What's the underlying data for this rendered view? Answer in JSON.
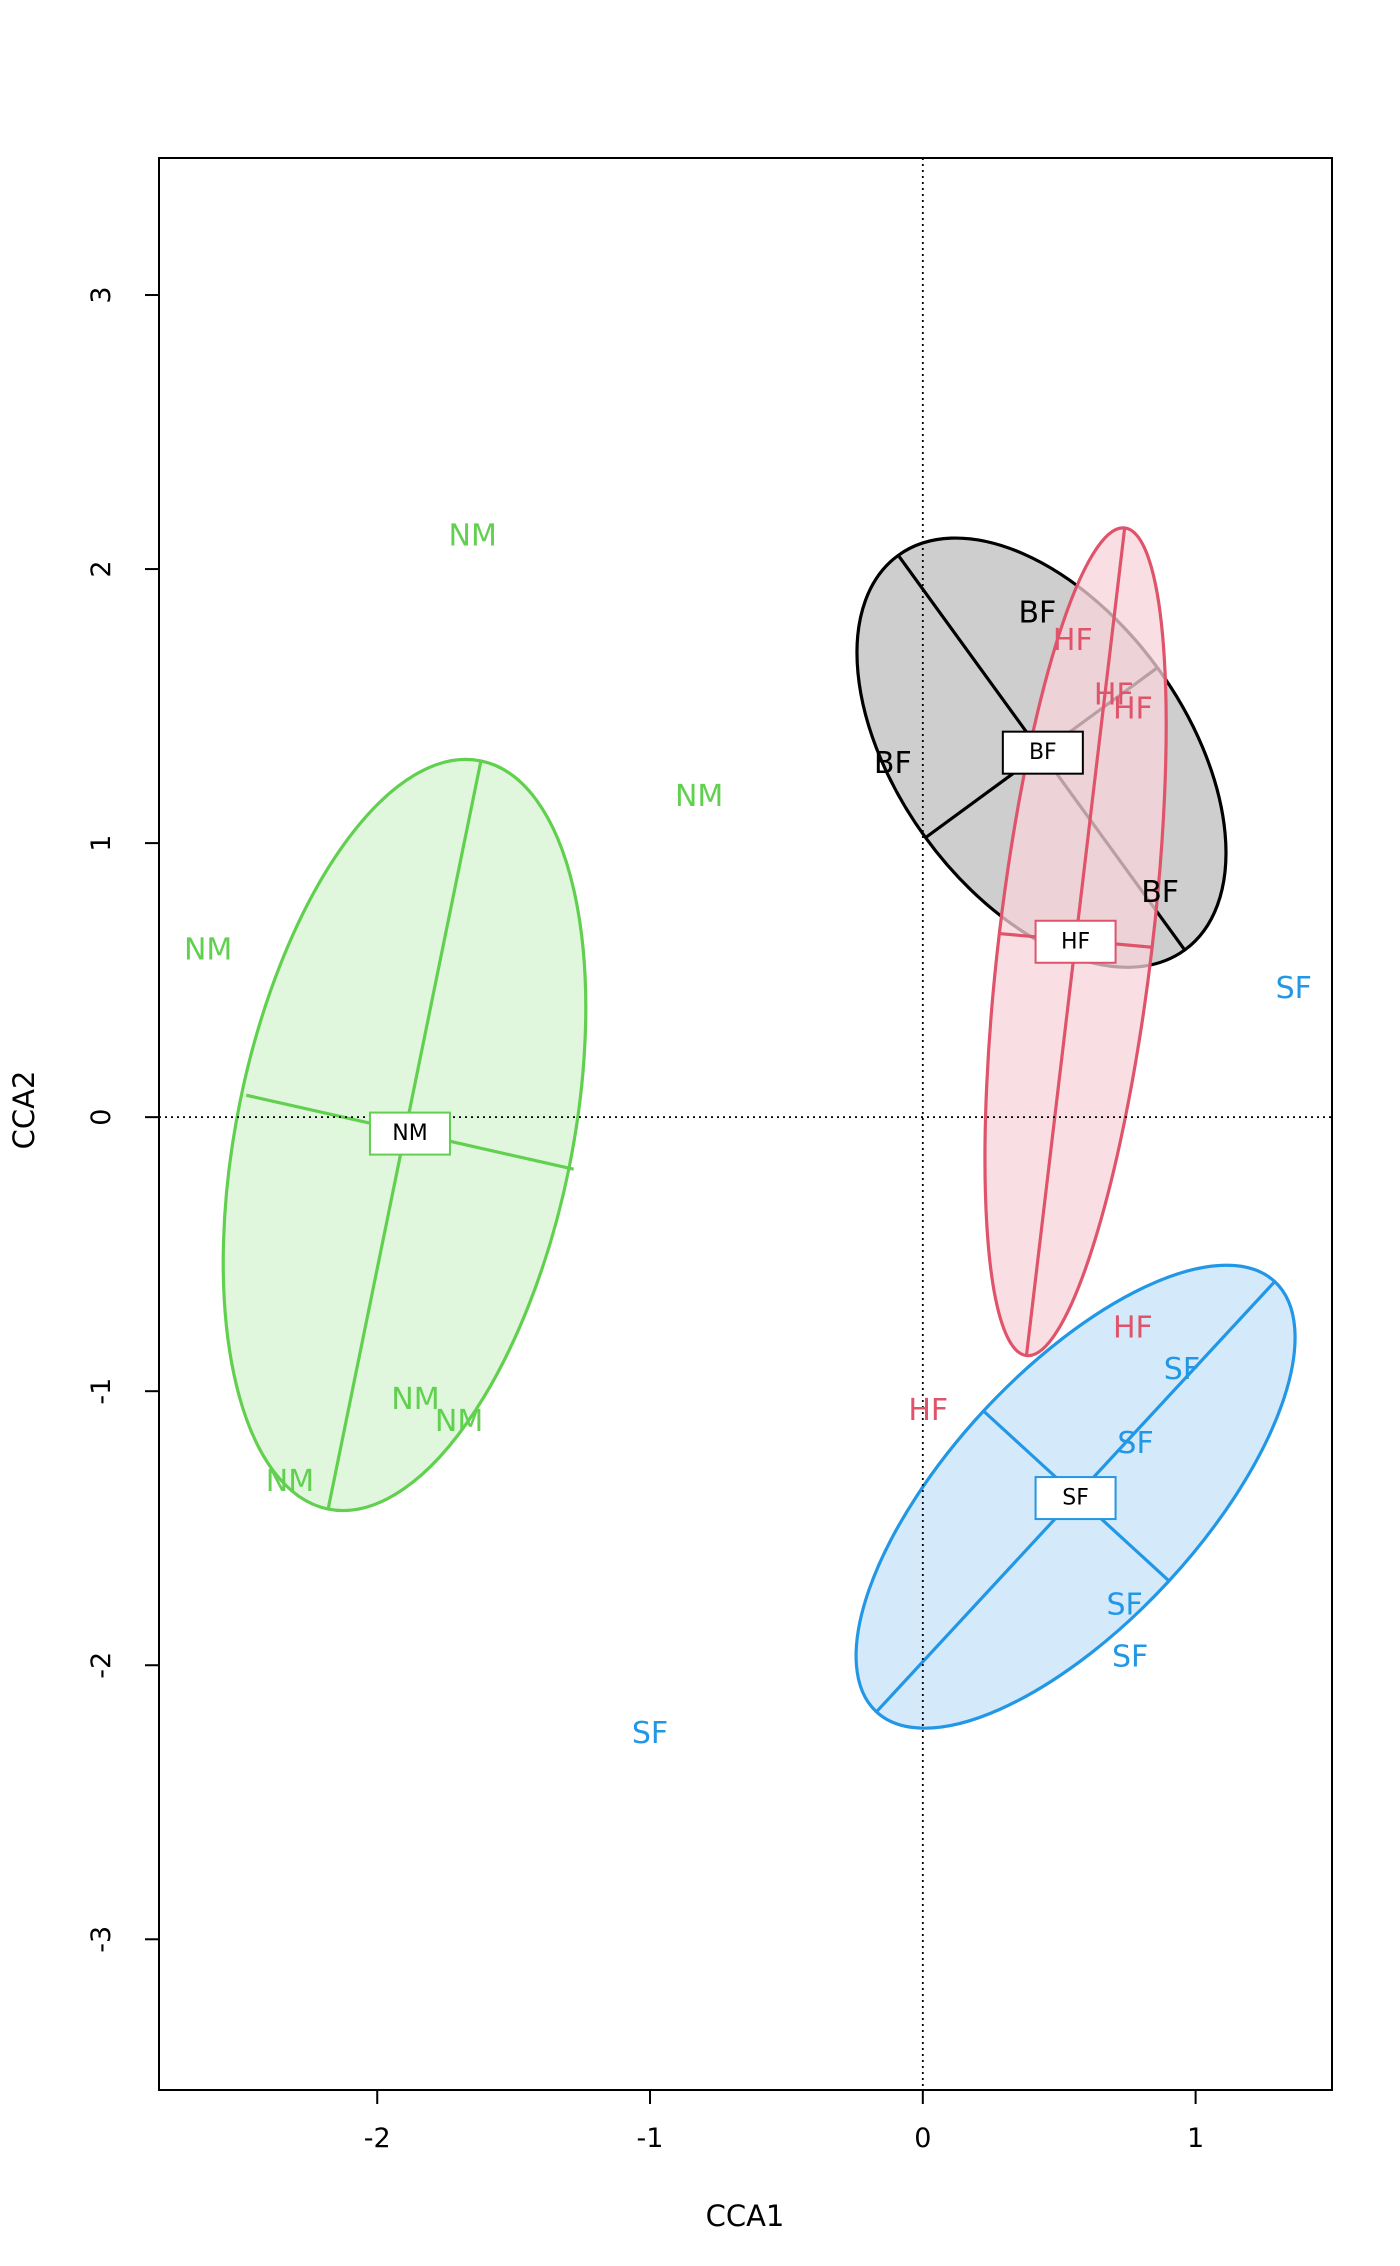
{
  "chart_data": {
    "type": "scatter",
    "title": "",
    "xlabel": "CCA1",
    "ylabel": "CCA2",
    "xlim": [
      -2.8,
      1.5
    ],
    "ylim": [
      -3.55,
      3.5
    ],
    "xticks": [
      -2,
      -1,
      0,
      1
    ],
    "xtick_labels": [
      "-2",
      "-1",
      "0",
      "1"
    ],
    "yticks": [
      -3,
      -2,
      -1,
      0,
      1,
      2,
      3
    ],
    "ytick_labels": [
      "-3",
      "-2",
      "-1",
      "0",
      "1",
      "2",
      "3"
    ],
    "grid": false,
    "reference_lines": {
      "x": 0,
      "y": 0,
      "style": "dotted"
    },
    "series": [
      {
        "name": "NM",
        "color": "#61D04F",
        "fill": "#D6F3D1",
        "points": [
          {
            "x": -1.65,
            "y": 2.12
          },
          {
            "x": -0.82,
            "y": 1.17
          },
          {
            "x": -2.62,
            "y": 0.61
          },
          {
            "x": -1.86,
            "y": -1.03
          },
          {
            "x": -1.7,
            "y": -1.11
          },
          {
            "x": -2.32,
            "y": -1.33
          }
        ],
        "centroid": {
          "x": -1.88,
          "y": -0.06
        },
        "ellipse": {
          "major": [
            [
              -1.62,
              1.3
            ],
            [
              -2.18,
              -1.43
            ]
          ],
          "minor": [
            [
              -2.48,
              0.08
            ],
            [
              -1.28,
              -0.19
            ]
          ]
        }
      },
      {
        "name": "BF",
        "color": "#000000",
        "fill": "#BEBEBE",
        "points": [
          {
            "x": 0.42,
            "y": 1.84
          },
          {
            "x": -0.11,
            "y": 1.29
          },
          {
            "x": 0.87,
            "y": 0.82
          }
        ],
        "centroid": {
          "x": 0.44,
          "y": 1.33
        },
        "ellipse": {
          "major": [
            [
              -0.09,
              2.05
            ],
            [
              0.96,
              0.61
            ]
          ],
          "minor": [
            [
              0.01,
              1.02
            ],
            [
              0.86,
              1.64
            ]
          ]
        }
      },
      {
        "name": "HF",
        "color": "#DF536B",
        "fill": "#F7D4DA",
        "points": [
          {
            "x": 0.55,
            "y": 1.74
          },
          {
            "x": 0.7,
            "y": 1.54
          },
          {
            "x": 0.77,
            "y": 1.49
          },
          {
            "x": 0.77,
            "y": -0.77
          },
          {
            "x": 0.02,
            "y": -1.07
          }
        ],
        "centroid": {
          "x": 0.56,
          "y": 0.64
        },
        "ellipse": {
          "major": [
            [
              0.74,
              2.15
            ],
            [
              0.38,
              -0.87
            ]
          ],
          "minor": [
            [
              0.28,
              0.67
            ],
            [
              0.84,
              0.62
            ]
          ]
        }
      },
      {
        "name": "SF",
        "color": "#2297E6",
        "fill": "#C6E3F8",
        "points": [
          {
            "x": 1.36,
            "y": 0.47
          },
          {
            "x": 0.95,
            "y": -0.92
          },
          {
            "x": 0.78,
            "y": -1.19
          },
          {
            "x": 0.74,
            "y": -1.78
          },
          {
            "x": 0.76,
            "y": -1.97
          },
          {
            "x": -1.0,
            "y": -2.25
          }
        ],
        "centroid": {
          "x": 0.56,
          "y": -1.39
        },
        "ellipse": {
          "major": [
            [
              1.29,
              -0.6
            ],
            [
              -0.17,
              -2.17
            ]
          ],
          "minor": [
            [
              0.22,
              -1.07
            ],
            [
              0.9,
              -1.69
            ]
          ]
        }
      }
    ]
  }
}
